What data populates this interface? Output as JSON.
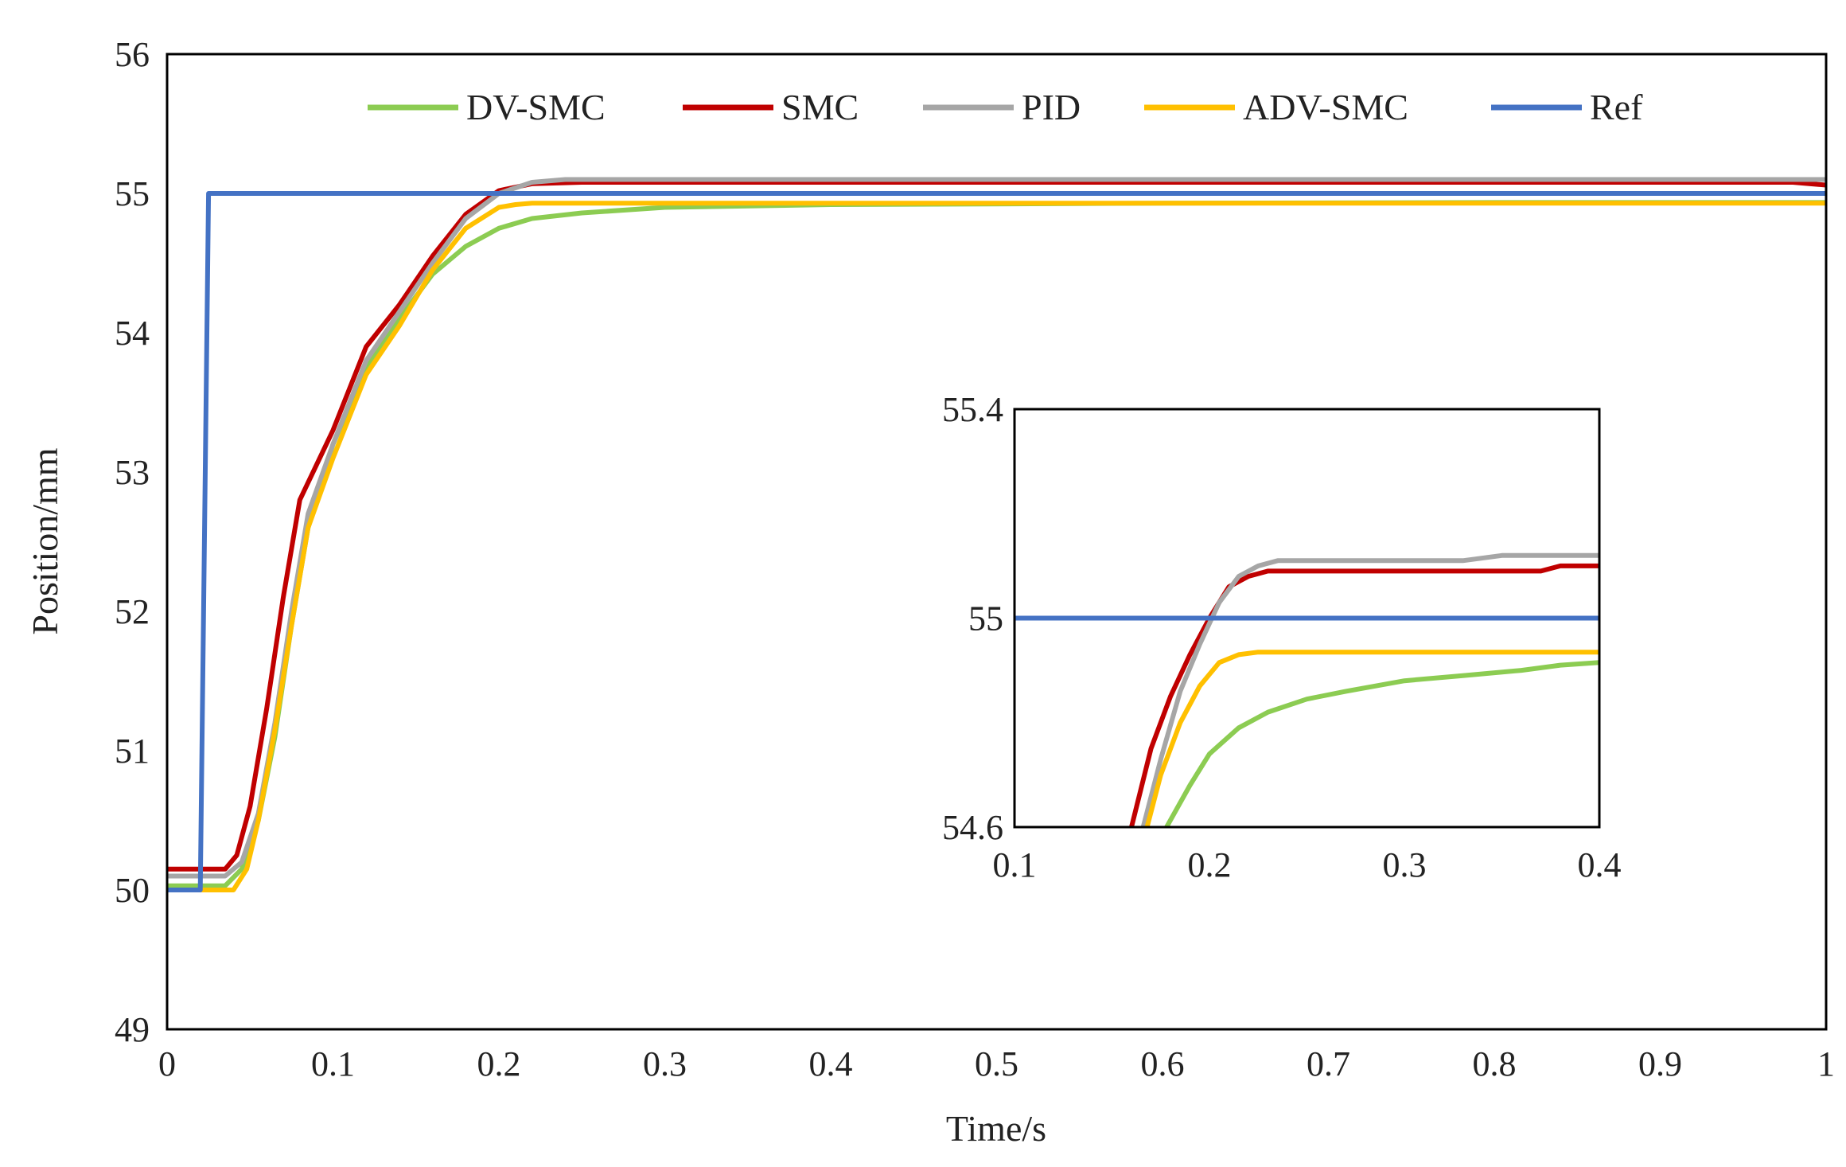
{
  "colors": {
    "DV-SMC": "#8ccc52",
    "SMC": "#c00000",
    "PID": "#a6a6a6",
    "ADV-SMC": "#ffc000",
    "Ref": "#4472c4"
  },
  "chart_data": [
    {
      "type": "line",
      "title": "",
      "xlabel": "Time/s",
      "ylabel": "Position/mm",
      "xlim": [
        0,
        1
      ],
      "ylim": [
        49,
        56
      ],
      "xticks": [
        "0",
        "0.1",
        "0.2",
        "0.3",
        "0.4",
        "0.5",
        "0.6",
        "0.7",
        "0.8",
        "0.9",
        "1"
      ],
      "yticks": [
        "49",
        "50",
        "51",
        "52",
        "53",
        "54",
        "55",
        "56"
      ],
      "legend": "top",
      "legend_entries": [
        "DV-SMC",
        "SMC",
        "PID",
        "ADV-SMC",
        "Ref"
      ],
      "series": [
        {
          "name": "DV-SMC",
          "color": "#8ccc52",
          "x": [
            0,
            0.035,
            0.045,
            0.055,
            0.065,
            0.075,
            0.085,
            0.1,
            0.12,
            0.14,
            0.16,
            0.18,
            0.2,
            0.22,
            0.25,
            0.3,
            0.4,
            0.6,
            0.8,
            1.0
          ],
          "y": [
            50.03,
            50.03,
            50.15,
            50.5,
            51.1,
            51.9,
            52.6,
            53.2,
            53.75,
            54.1,
            54.42,
            54.62,
            54.75,
            54.82,
            54.86,
            54.9,
            54.92,
            54.93,
            54.935,
            54.935
          ]
        },
        {
          "name": "SMC",
          "color": "#c00000",
          "x": [
            0,
            0.035,
            0.042,
            0.05,
            0.06,
            0.07,
            0.08,
            0.1,
            0.12,
            0.14,
            0.16,
            0.18,
            0.2,
            0.22,
            0.25,
            0.4,
            0.6,
            0.8,
            0.98,
            1.0
          ],
          "y": [
            50.15,
            50.15,
            50.25,
            50.6,
            51.3,
            52.1,
            52.8,
            53.3,
            53.9,
            54.2,
            54.55,
            54.85,
            55.02,
            55.07,
            55.08,
            55.08,
            55.08,
            55.08,
            55.08,
            55.06
          ]
        },
        {
          "name": "PID",
          "color": "#a6a6a6",
          "x": [
            0,
            0.035,
            0.045,
            0.055,
            0.065,
            0.075,
            0.085,
            0.1,
            0.12,
            0.14,
            0.16,
            0.18,
            0.2,
            0.22,
            0.24,
            0.35,
            0.5,
            0.7,
            0.9,
            1.0
          ],
          "y": [
            50.1,
            50.1,
            50.2,
            50.55,
            51.2,
            52.0,
            52.7,
            53.2,
            53.8,
            54.15,
            54.5,
            54.82,
            55.0,
            55.08,
            55.1,
            55.1,
            55.1,
            55.1,
            55.1,
            55.1
          ]
        },
        {
          "name": "ADV-SMC",
          "color": "#ffc000",
          "x": [
            0,
            0.04,
            0.048,
            0.055,
            0.065,
            0.075,
            0.085,
            0.1,
            0.12,
            0.14,
            0.16,
            0.18,
            0.2,
            0.21,
            0.22,
            0.3,
            0.5,
            0.7,
            1.0
          ],
          "y": [
            50.0,
            50.0,
            50.15,
            50.5,
            51.15,
            51.9,
            52.6,
            53.1,
            53.7,
            54.05,
            54.45,
            54.75,
            54.9,
            54.92,
            54.93,
            54.93,
            54.93,
            54.93,
            54.93
          ]
        },
        {
          "name": "Ref",
          "color": "#4472c4",
          "x": [
            0,
            0.02,
            0.025,
            1.0
          ],
          "y": [
            50.0,
            50.0,
            55.0,
            55.0
          ]
        }
      ]
    },
    {
      "type": "line",
      "title": "",
      "xlabel": "",
      "ylabel": "",
      "xlim": [
        0.1,
        0.4
      ],
      "ylim": [
        54.6,
        55.4
      ],
      "xticks": [
        "0.1",
        "0.2",
        "0.3",
        "0.4"
      ],
      "yticks": [
        "54.6",
        "55",
        "55.4"
      ],
      "series": [
        {
          "name": "DV-SMC",
          "color": "#8ccc52",
          "x": [
            0.178,
            0.19,
            0.2,
            0.215,
            0.23,
            0.25,
            0.27,
            0.3,
            0.33,
            0.36,
            0.38,
            0.4
          ],
          "y": [
            54.6,
            54.68,
            54.74,
            54.79,
            54.82,
            54.845,
            54.86,
            54.88,
            54.89,
            54.9,
            54.91,
            54.915
          ]
        },
        {
          "name": "SMC",
          "color": "#c00000",
          "x": [
            0.16,
            0.17,
            0.18,
            0.19,
            0.2,
            0.21,
            0.22,
            0.23,
            0.3,
            0.37,
            0.38,
            0.4
          ],
          "y": [
            54.6,
            54.75,
            54.85,
            54.93,
            55.0,
            55.06,
            55.08,
            55.09,
            55.09,
            55.09,
            55.1,
            55.1
          ]
        },
        {
          "name": "PID",
          "color": "#a6a6a6",
          "x": [
            0.166,
            0.175,
            0.185,
            0.195,
            0.205,
            0.215,
            0.225,
            0.235,
            0.3,
            0.33,
            0.35,
            0.4
          ],
          "y": [
            54.6,
            54.73,
            54.86,
            54.95,
            55.03,
            55.08,
            55.1,
            55.11,
            55.11,
            55.11,
            55.12,
            55.12
          ]
        },
        {
          "name": "ADV-SMC",
          "color": "#ffc000",
          "x": [
            0.168,
            0.175,
            0.185,
            0.195,
            0.205,
            0.215,
            0.225,
            0.3,
            0.4
          ],
          "y": [
            54.6,
            54.7,
            54.8,
            54.87,
            54.915,
            54.93,
            54.935,
            54.935,
            54.935
          ]
        },
        {
          "name": "Ref",
          "color": "#4472c4",
          "x": [
            0.1,
            0.4
          ],
          "y": [
            55.0,
            55.0
          ]
        }
      ]
    }
  ]
}
